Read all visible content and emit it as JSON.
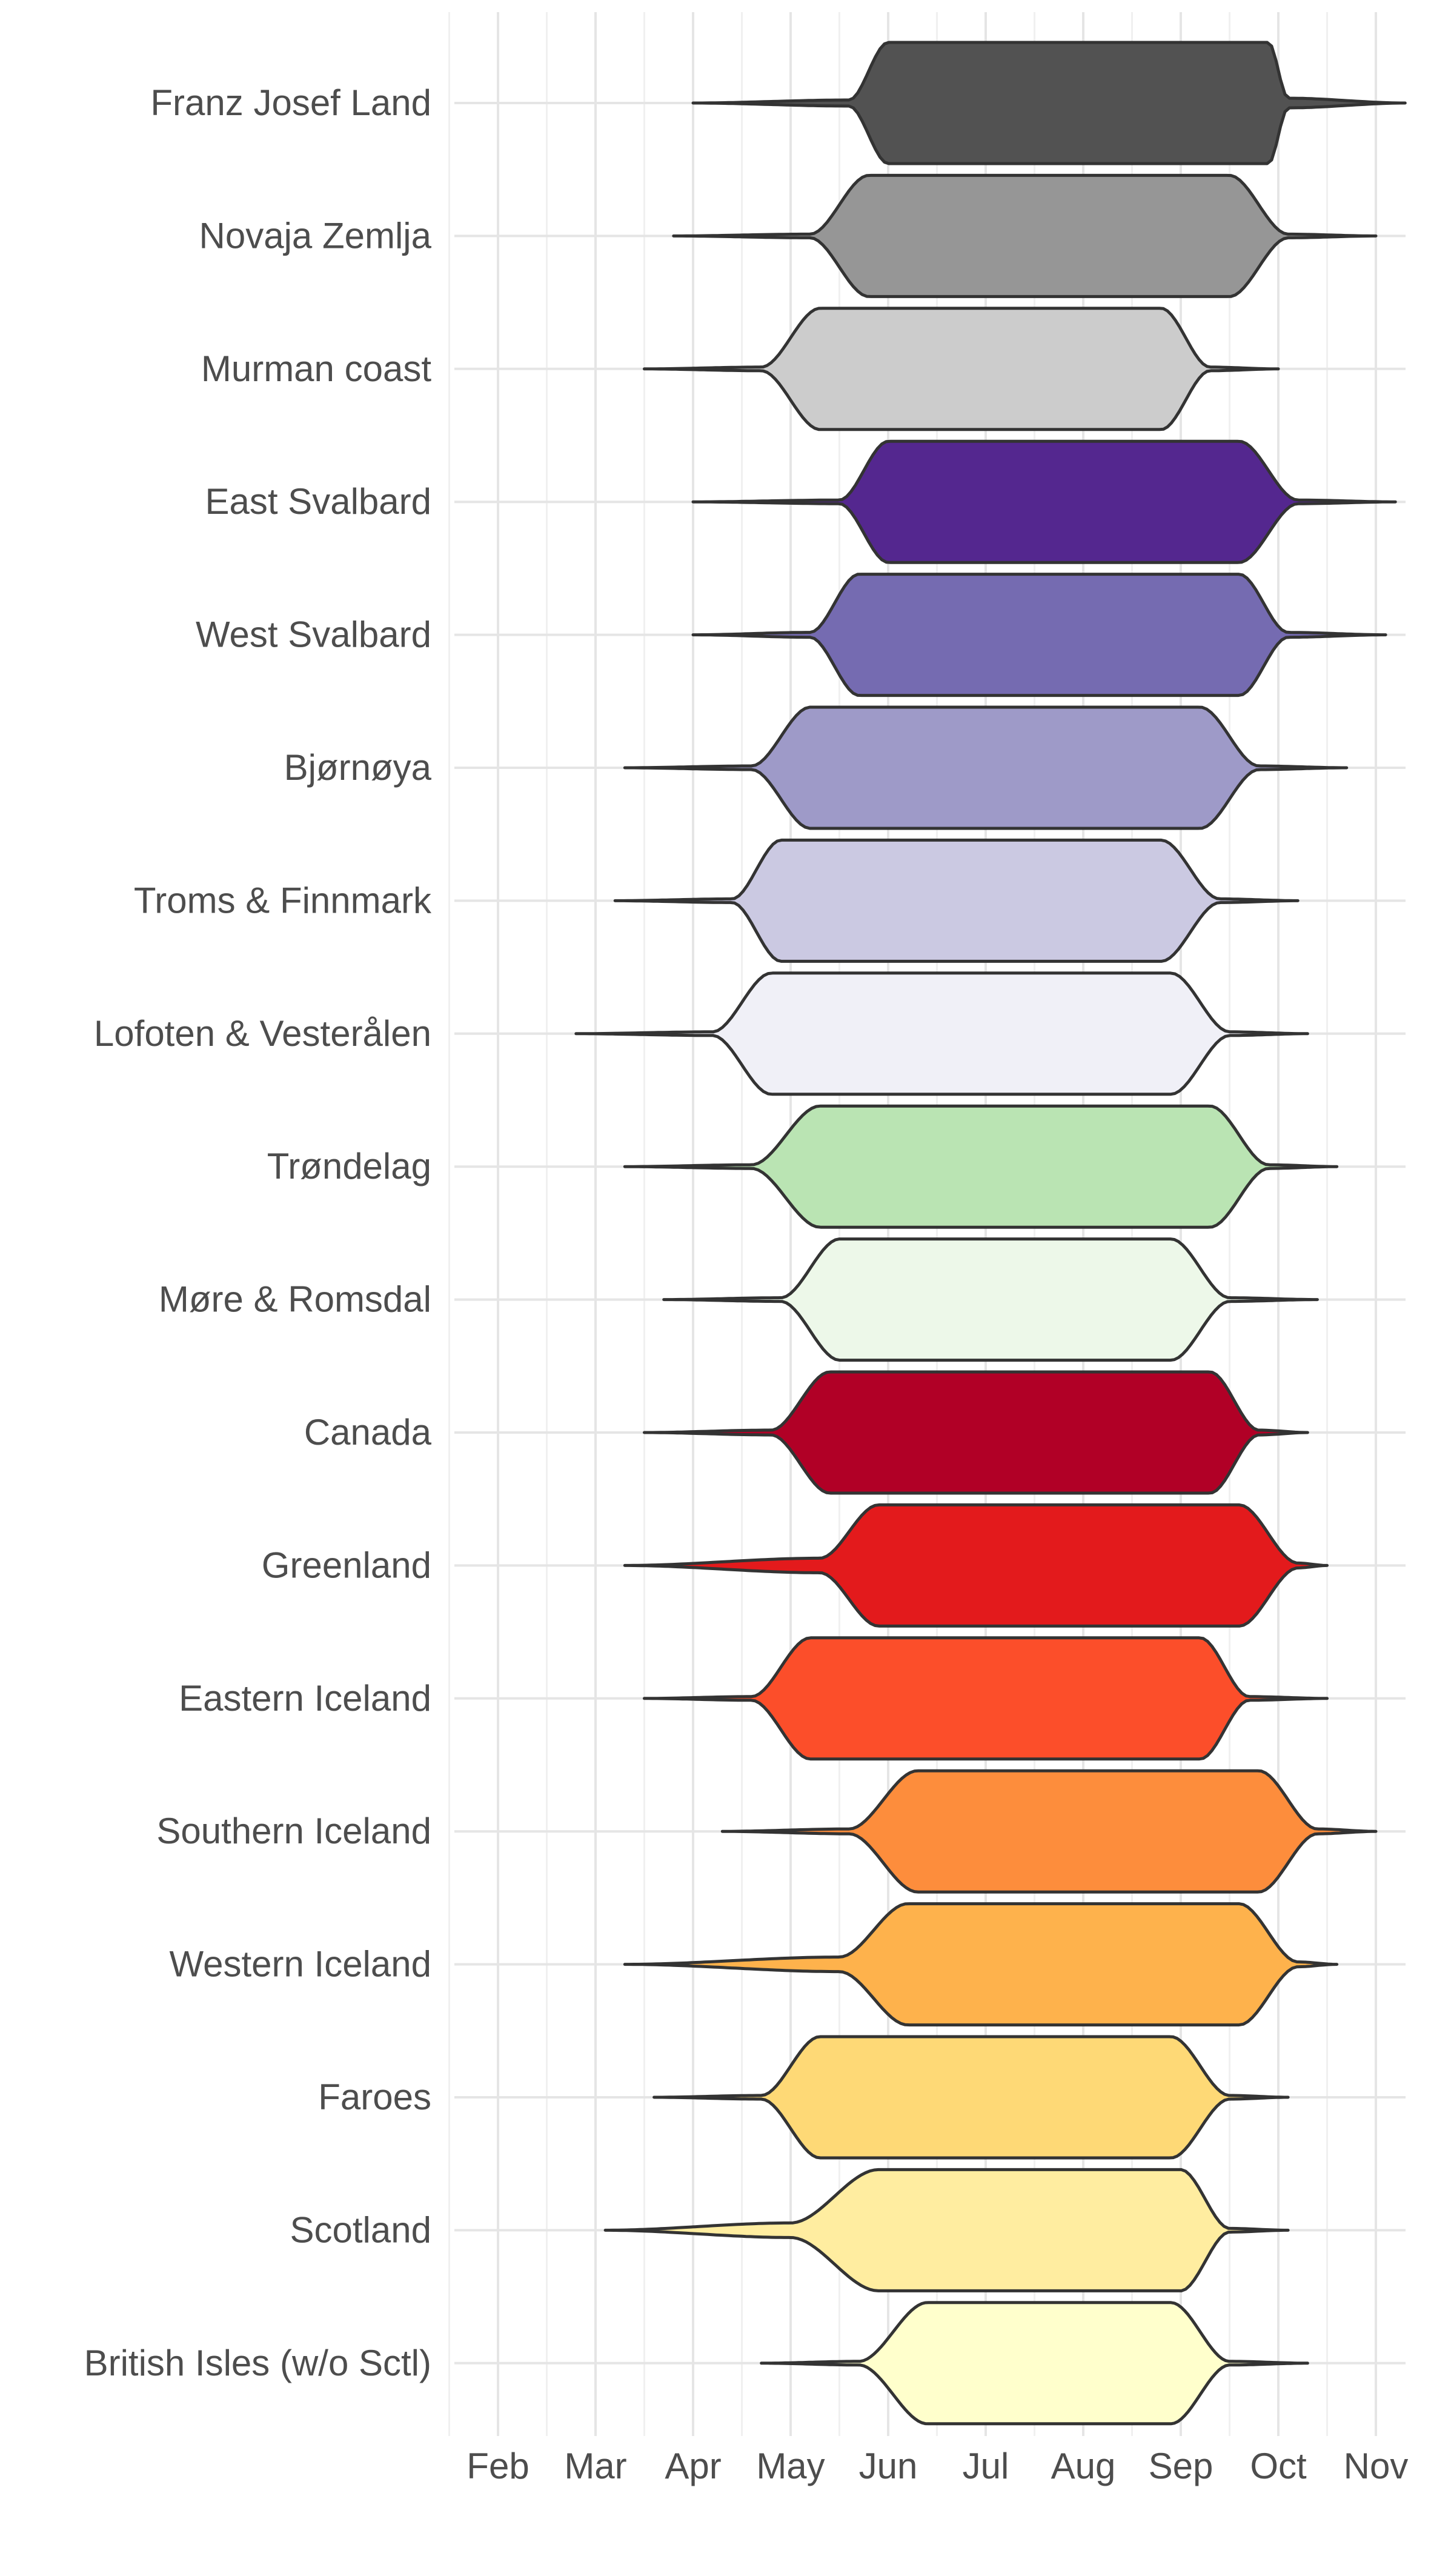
{
  "chart_data": {
    "type": "violin",
    "x_axis": {
      "ticks": [
        "Feb",
        "Mar",
        "Apr",
        "May",
        "Jun",
        "Jul",
        "Aug",
        "Sep",
        "Oct",
        "Nov"
      ],
      "range_months": [
        0.5,
        10.0
      ]
    },
    "grid": true,
    "legend": "none",
    "series": [
      {
        "label": "Franz Josef Land",
        "color": "#525252",
        "start": 3.0,
        "ramp_end": 4.6,
        "plateau_start": 5.0,
        "plateau_end": 8.9,
        "ramp_start": 9.1,
        "end": 10.3,
        "tail_start": 0.05,
        "tail_end": 0.08
      },
      {
        "label": "Novaja Zemlja",
        "color": "#969696",
        "start": 2.8,
        "ramp_end": 4.2,
        "plateau_start": 4.8,
        "plateau_end": 8.5,
        "ramp_start": 9.1,
        "end": 10.0,
        "tail_start": 0.03,
        "tail_end": 0.03
      },
      {
        "label": "Murman coast",
        "color": "#cccccc",
        "start": 2.5,
        "ramp_end": 3.7,
        "plateau_start": 4.3,
        "plateau_end": 7.8,
        "ramp_start": 8.3,
        "end": 9.0,
        "tail_start": 0.03,
        "tail_end": 0.03
      },
      {
        "label": "East Svalbard",
        "color": "#54278f",
        "start": 3.0,
        "ramp_end": 4.5,
        "plateau_start": 5.0,
        "plateau_end": 8.6,
        "ramp_start": 9.2,
        "end": 10.2,
        "tail_start": 0.03,
        "tail_end": 0.03
      },
      {
        "label": "West Svalbard",
        "color": "#756bb1",
        "start": 3.0,
        "ramp_end": 4.2,
        "plateau_start": 4.7,
        "plateau_end": 8.6,
        "ramp_start": 9.1,
        "end": 10.1,
        "tail_start": 0.04,
        "tail_end": 0.04
      },
      {
        "label": "Bjørnøya",
        "color": "#9e9ac8",
        "start": 2.3,
        "ramp_end": 3.6,
        "plateau_start": 4.2,
        "plateau_end": 8.2,
        "ramp_start": 8.8,
        "end": 9.7,
        "tail_start": 0.03,
        "tail_end": 0.03
      },
      {
        "label": "Troms & Finnmark",
        "color": "#cbc9e2",
        "start": 2.2,
        "ramp_end": 3.4,
        "plateau_start": 3.9,
        "plateau_end": 7.8,
        "ramp_start": 8.4,
        "end": 9.2,
        "tail_start": 0.03,
        "tail_end": 0.03
      },
      {
        "label": "Lofoten & Vesterålen",
        "color": "#f0f0f7",
        "start": 1.8,
        "ramp_end": 3.2,
        "plateau_start": 3.8,
        "plateau_end": 7.9,
        "ramp_start": 8.5,
        "end": 9.3,
        "tail_start": 0.03,
        "tail_end": 0.03
      },
      {
        "label": "Trøndelag",
        "color": "#bae4b3",
        "start": 2.3,
        "ramp_end": 3.6,
        "plateau_start": 4.3,
        "plateau_end": 8.3,
        "ramp_start": 8.9,
        "end": 9.6,
        "tail_start": 0.03,
        "tail_end": 0.03
      },
      {
        "label": "Møre & Romsdal",
        "color": "#edf8e9",
        "start": 2.7,
        "ramp_end": 3.9,
        "plateau_start": 4.5,
        "plateau_end": 7.9,
        "ramp_start": 8.5,
        "end": 9.4,
        "tail_start": 0.03,
        "tail_end": 0.03
      },
      {
        "label": "Canada",
        "color": "#b10026",
        "start": 2.5,
        "ramp_end": 3.8,
        "plateau_start": 4.4,
        "plateau_end": 8.3,
        "ramp_start": 8.8,
        "end": 9.3,
        "tail_start": 0.04,
        "tail_end": 0.04
      },
      {
        "label": "Greenland",
        "color": "#e31a1c",
        "start": 2.3,
        "ramp_end": 4.3,
        "plateau_start": 4.9,
        "plateau_end": 8.6,
        "ramp_start": 9.2,
        "end": 9.5,
        "tail_start": 0.12,
        "tail_end": 0.04
      },
      {
        "label": "Eastern Iceland",
        "color": "#fc4e2a",
        "start": 2.5,
        "ramp_end": 3.6,
        "plateau_start": 4.2,
        "plateau_end": 8.2,
        "ramp_start": 8.7,
        "end": 9.5,
        "tail_start": 0.03,
        "tail_end": 0.03
      },
      {
        "label": "Southern Iceland",
        "color": "#fd8d3c",
        "start": 3.3,
        "ramp_end": 4.6,
        "plateau_start": 5.3,
        "plateau_end": 8.8,
        "ramp_start": 9.4,
        "end": 10.0,
        "tail_start": 0.04,
        "tail_end": 0.04
      },
      {
        "label": "Western Iceland",
        "color": "#feb24c",
        "start": 2.3,
        "ramp_end": 4.5,
        "plateau_start": 5.2,
        "plateau_end": 8.6,
        "ramp_start": 9.2,
        "end": 9.6,
        "tail_start": 0.12,
        "tail_end": 0.04
      },
      {
        "label": "Faroes",
        "color": "#fed976",
        "start": 2.6,
        "ramp_end": 3.7,
        "plateau_start": 4.3,
        "plateau_end": 7.9,
        "ramp_start": 8.5,
        "end": 9.1,
        "tail_start": 0.03,
        "tail_end": 0.03
      },
      {
        "label": "Scotland",
        "color": "#ffeda0",
        "start": 2.1,
        "ramp_end": 4.0,
        "plateau_start": 4.9,
        "plateau_end": 8.0,
        "ramp_start": 8.5,
        "end": 9.1,
        "tail_start": 0.12,
        "tail_end": 0.03
      },
      {
        "label": "British Isles (w/o Sctl)",
        "color": "#ffffcc",
        "start": 3.7,
        "ramp_end": 4.7,
        "plateau_start": 5.4,
        "plateau_end": 7.9,
        "ramp_start": 8.5,
        "end": 9.3,
        "tail_start": 0.03,
        "tail_end": 0.03
      }
    ]
  }
}
